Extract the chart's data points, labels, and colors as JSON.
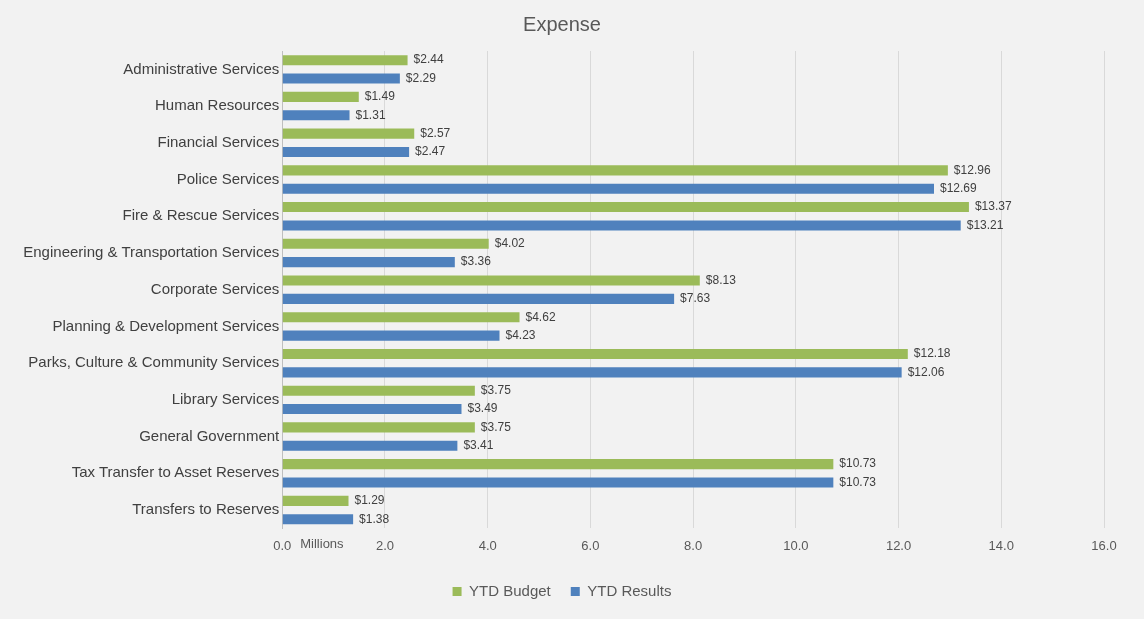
{
  "chart_data": {
    "type": "bar",
    "orientation": "horizontal",
    "title": "Expense",
    "xlabel": "Millions",
    "categories": [
      "Administrative Services",
      "Human Resources",
      "Financial Services",
      "Police Services",
      "Fire & Rescue Services",
      "Engineering & Transportation Services",
      "Corporate Services",
      "Planning & Development Services",
      "Parks, Culture & Community Services",
      "Library Services",
      "General Government",
      "Tax Transfer to Asset Reserves",
      "Transfers to Reserves"
    ],
    "series": [
      {
        "name": "YTD Budget",
        "color": "#9bbb59",
        "values": [
          2.44,
          1.49,
          2.57,
          12.96,
          13.37,
          4.02,
          8.13,
          4.62,
          12.18,
          3.75,
          3.75,
          10.73,
          1.29
        ],
        "value_labels": [
          "$2.44",
          "$1.49",
          "$2.57",
          "$12.96",
          "$13.37",
          "$4.02",
          "$8.13",
          "$4.62",
          "$12.18",
          "$3.75",
          "$3.75",
          "$10.73",
          "$1.29"
        ]
      },
      {
        "name": "YTD Results",
        "color": "#4f81bd",
        "values": [
          2.29,
          1.31,
          2.47,
          12.69,
          13.21,
          3.36,
          7.63,
          4.23,
          12.06,
          3.49,
          3.41,
          10.73,
          1.38
        ],
        "value_labels": [
          "$2.29",
          "$1.31",
          "$2.47",
          "$12.69",
          "$13.21",
          "$3.36",
          "$7.63",
          "$4.23",
          "$12.06",
          "$3.49",
          "$3.41",
          "$10.73",
          "$1.38"
        ]
      }
    ],
    "xlim": [
      0,
      16
    ],
    "xticks": [
      {
        "value": 0,
        "label": "0.0"
      },
      {
        "value": 2,
        "label": "2.0"
      },
      {
        "value": 4,
        "label": "4.0"
      },
      {
        "value": 6,
        "label": "6.0"
      },
      {
        "value": 8,
        "label": "8.0"
      },
      {
        "value": 10,
        "label": "10.0"
      },
      {
        "value": 12,
        "label": "12.0"
      },
      {
        "value": 14,
        "label": "14.0"
      },
      {
        "value": 16,
        "label": "16.0"
      }
    ],
    "grid": "x",
    "legend": "bottom"
  }
}
